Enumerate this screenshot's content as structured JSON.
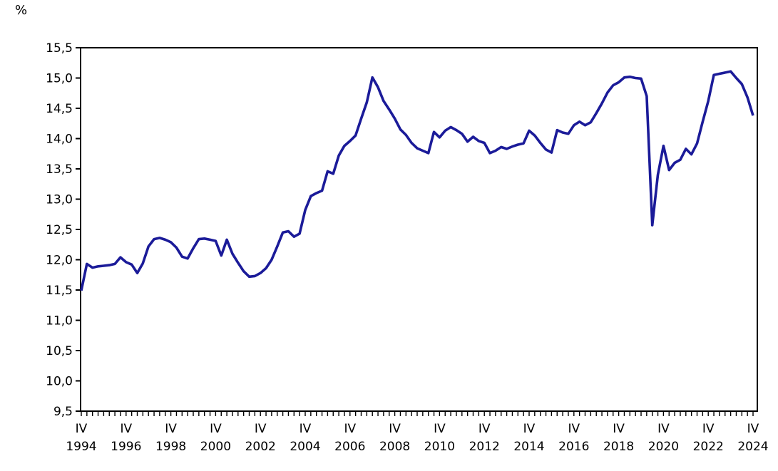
{
  "unit_label": "%",
  "chart_data": {
    "type": "line",
    "title": "",
    "xlabel": "",
    "ylabel": "%",
    "frequency": "quarterly",
    "x_start": "IV 1994",
    "x_end": "IV 2024",
    "ylim": [
      9.5,
      15.5
    ],
    "y_tick_step": 0.5,
    "y_tick_labels": [
      "15,5",
      "15,0",
      "14,5",
      "14,0",
      "13,5",
      "13,0",
      "12,5",
      "12,0",
      "11,5",
      "11,0",
      "10,5",
      "10,0",
      "9,5"
    ],
    "x_quarter_label": "IV",
    "x_tick_years": [
      "1994",
      "1996",
      "1998",
      "2000",
      "2002",
      "2004",
      "2006",
      "2008",
      "2010",
      "2012",
      "2014",
      "2016",
      "2018",
      "2020",
      "2022",
      "2024"
    ],
    "x_label_interval_quarters": 8,
    "grid": false,
    "legend": false,
    "line_color": "#1b1b99",
    "axis_color": "#000000",
    "series": [
      {
        "name": "percentage",
        "start_quarter": "1994-Q4",
        "values": [
          11.49,
          11.93,
          11.87,
          11.89,
          11.9,
          11.91,
          11.93,
          12.04,
          11.96,
          11.92,
          11.78,
          11.94,
          12.22,
          12.34,
          12.36,
          12.33,
          12.29,
          12.2,
          12.05,
          12.02,
          12.19,
          12.34,
          12.35,
          12.33,
          12.31,
          12.07,
          12.33,
          12.1,
          11.95,
          11.81,
          11.72,
          11.73,
          11.78,
          11.86,
          12.0,
          12.22,
          12.45,
          12.47,
          12.38,
          12.43,
          12.82,
          13.05,
          13.1,
          13.14,
          13.46,
          13.42,
          13.72,
          13.88,
          13.96,
          14.05,
          14.33,
          14.6,
          15.01,
          14.85,
          14.62,
          14.48,
          14.33,
          14.15,
          14.06,
          13.93,
          13.84,
          13.8,
          13.76,
          14.11,
          14.02,
          14.13,
          14.19,
          14.14,
          14.08,
          13.95,
          14.03,
          13.96,
          13.93,
          13.76,
          13.8,
          13.86,
          13.83,
          13.87,
          13.9,
          13.92,
          14.13,
          14.05,
          13.93,
          13.82,
          13.77,
          14.14,
          14.1,
          14.08,
          14.22,
          14.28,
          14.22,
          14.27,
          14.42,
          14.58,
          14.76,
          14.88,
          14.93,
          15.01,
          15.02,
          15.0,
          14.99,
          14.7,
          12.57,
          13.4,
          13.88,
          13.48,
          13.6,
          13.65,
          13.83,
          13.74,
          13.92,
          14.28,
          14.62,
          15.05,
          15.07,
          15.09,
          15.11,
          15.0,
          14.9,
          14.68,
          14.38
        ]
      }
    ]
  }
}
